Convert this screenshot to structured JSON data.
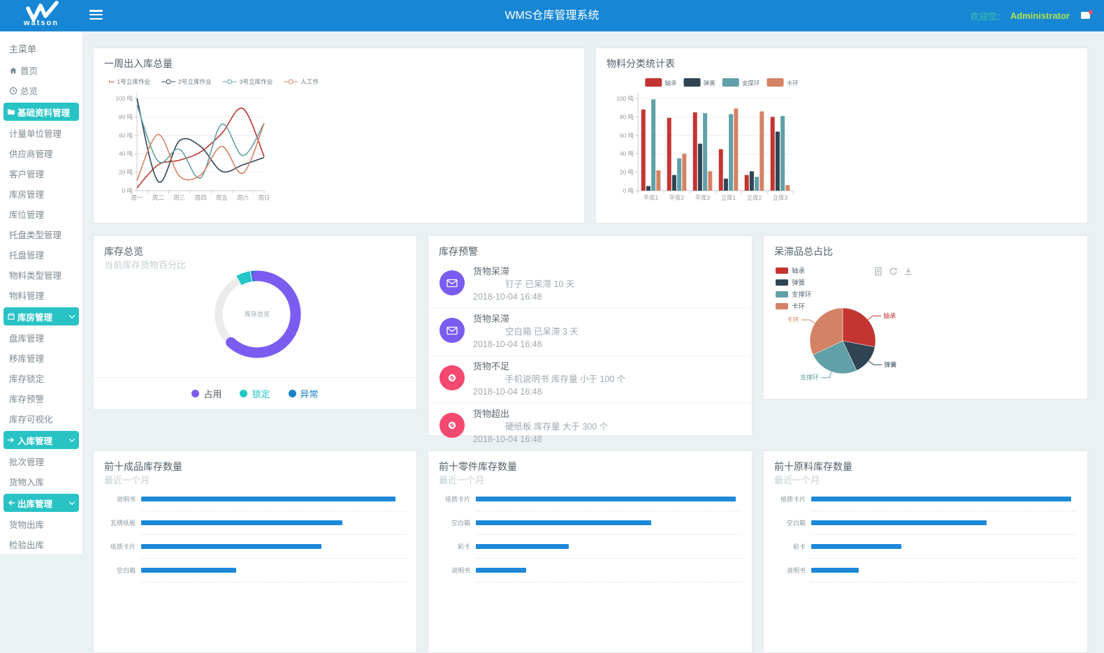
{
  "header": {
    "logo_text": "watson",
    "title": "WMS仓库管理系统",
    "welcome_label": "欢迎您：",
    "username": "Administrator"
  },
  "colors": {
    "header_blue": "#1787d5",
    "sidebar_teal": "#29c3c6",
    "welcome_green": "#3fc9a3",
    "username_green": "#b5e04b",
    "bar_blue": "#1e88d8",
    "alert_purple": "#7a5cf0",
    "alert_pink": "#f3486f"
  },
  "sidebar": {
    "section_label": "主菜单",
    "items": [
      {
        "label": "首页",
        "icon": "home-icon",
        "style": "link"
      },
      {
        "label": "总览",
        "icon": "overview-icon",
        "style": "link"
      },
      {
        "label": "基础资料管理",
        "icon": "folder-icon",
        "style": "group",
        "active": true
      },
      {
        "label": "计量单位管理",
        "style": "link"
      },
      {
        "label": "供应商管理",
        "style": "link"
      },
      {
        "label": "客户管理",
        "style": "link"
      },
      {
        "label": "库房管理",
        "style": "link"
      },
      {
        "label": "库位管理",
        "style": "link"
      },
      {
        "label": "托盘类型管理",
        "style": "link"
      },
      {
        "label": "托盘管理",
        "style": "link"
      },
      {
        "label": "物料类型管理",
        "style": "link"
      },
      {
        "label": "物料管理",
        "style": "link"
      },
      {
        "label": "库房管理",
        "icon": "box-icon",
        "style": "group",
        "chevron": true
      },
      {
        "label": "盘库管理",
        "style": "link"
      },
      {
        "label": "移库管理",
        "style": "link"
      },
      {
        "label": "库存锁定",
        "style": "link"
      },
      {
        "label": "库存预警",
        "style": "link"
      },
      {
        "label": "库存可视化",
        "style": "link"
      },
      {
        "label": "入库管理",
        "icon": "arrow-right-icon",
        "style": "group",
        "chevron": true
      },
      {
        "label": "批次管理",
        "style": "link"
      },
      {
        "label": "货物入库",
        "style": "link"
      },
      {
        "label": "出库管理",
        "icon": "arrow-left-icon",
        "style": "group",
        "chevron": true
      },
      {
        "label": "货物出库",
        "style": "link"
      },
      {
        "label": "检验出库",
        "style": "link"
      }
    ]
  },
  "cards": {
    "weekly": {
      "title": "一周出入库总量"
    },
    "material": {
      "title": "物料分类统计表"
    },
    "overview": {
      "title": "库存总览",
      "subtitle": "当前库存货物百分比"
    },
    "alerts": {
      "title": "库存预警",
      "items": [
        {
          "icon": "envelope-icon",
          "color": "#7a5cf0",
          "title": "货物呆滞",
          "message": "钉子 已呆滞 10 天",
          "time": "2018-10-04 16:48"
        },
        {
          "icon": "envelope-icon",
          "color": "#7a5cf0",
          "title": "货物呆滞",
          "message": "空白箱 已呆滞 3 天",
          "time": "2018-10-04 16:48"
        },
        {
          "icon": "alert-ring-icon",
          "color": "#f3486f",
          "title": "货物不足",
          "message": "手机说明书 库存量 小于 100 个",
          "time": "2018-10-04 16:48"
        },
        {
          "icon": "alert-ring-icon",
          "color": "#f3486f",
          "title": "货物超出",
          "message": "硬纸板 库存量 大于 300 个",
          "time": "2018-10-04 16:48"
        }
      ]
    },
    "stagnant": {
      "title": "呆滞品总占比",
      "toolbox": [
        "data-view-icon",
        "refresh-icon",
        "download-icon"
      ]
    },
    "top_finished": {
      "title": "前十成品库存数量",
      "subtitle": "最近一个月"
    },
    "top_parts": {
      "title": "前十零件库存数量",
      "subtitle": "最近一个月"
    },
    "top_raw": {
      "title": "前十原料库存数量",
      "subtitle": "最近一个月"
    }
  },
  "chart_data": [
    {
      "id": "weekly_line",
      "type": "line",
      "title": "一周出入库总量",
      "categories": [
        "周一",
        "周二",
        "周三",
        "周四",
        "周五",
        "周六",
        "周日"
      ],
      "unit": "吨",
      "ylim": [
        0,
        100
      ],
      "ytick_step": 20,
      "smooth": true,
      "legend_position": "top",
      "series": [
        {
          "name": "1号立库作业",
          "color": "#c23531",
          "values": [
            3,
            28,
            33,
            42,
            62,
            89,
            37
          ]
        },
        {
          "name": "2号立库作业",
          "color": "#2f4554",
          "values": [
            100,
            10,
            54,
            48,
            21,
            28,
            36
          ]
        },
        {
          "name": "3号立库作业",
          "color": "#61a0a8",
          "values": [
            93,
            32,
            45,
            14,
            72,
            38,
            73
          ]
        },
        {
          "name": "人工作业",
          "color": "#d48265",
          "values": [
            11,
            61,
            16,
            17,
            48,
            19,
            73
          ]
        }
      ]
    },
    {
      "id": "material_bar",
      "type": "bar",
      "title": "物料分类统计表",
      "categories": [
        "平库1",
        "平库2",
        "平库3",
        "立库1",
        "立库2",
        "立库3"
      ],
      "unit": "吨",
      "ylim": [
        0,
        100
      ],
      "ytick_step": 20,
      "legend_position": "top",
      "series": [
        {
          "name": "轴承",
          "color": "#c23531",
          "values": [
            88,
            79,
            85,
            45,
            17,
            80
          ]
        },
        {
          "name": "弹簧",
          "color": "#2f4554",
          "values": [
            5,
            17,
            51,
            13,
            21,
            64
          ]
        },
        {
          "name": "支撑环",
          "color": "#61a0a8",
          "values": [
            99,
            35,
            84,
            83,
            15,
            81
          ]
        },
        {
          "name": "卡环",
          "color": "#d48265",
          "values": [
            22,
            40,
            21,
            89,
            86,
            6
          ]
        }
      ]
    },
    {
      "id": "overview_donut",
      "type": "donut",
      "title": "库存总览",
      "center_label": "库存总览",
      "slices": [
        {
          "name": "占用",
          "value": 62,
          "color": "#7a5cf0"
        },
        {
          "name": "锁定",
          "value": 5.5,
          "color": "#23c6c9"
        },
        {
          "name": "异常",
          "value": 2.5,
          "color": "#1a82c8"
        }
      ],
      "remainder": {
        "value": 30,
        "color": "#ebebeb"
      },
      "legend_text_colors": [
        "#4a5a63",
        "#23c6c9",
        "#1a82c8"
      ]
    },
    {
      "id": "stagnant_pie",
      "type": "pie",
      "title": "呆滞品总占比",
      "slices": [
        {
          "name": "轴承",
          "value": 28,
          "color": "#c23531"
        },
        {
          "name": "弹簧",
          "value": 15,
          "color": "#2f4554"
        },
        {
          "name": "支撑环",
          "value": 25,
          "color": "#61a0a8"
        },
        {
          "name": "卡环",
          "value": 32,
          "color": "#d48265"
        }
      ]
    },
    {
      "id": "top_finished_bar",
      "type": "hbar",
      "title": "前十成品库存数量",
      "color": "#1e88d8",
      "max": 100,
      "categories": [
        "说明书",
        "瓦楞纸板",
        "纸质卡片",
        "空白箱"
      ],
      "values": [
        96,
        76,
        68,
        36
      ]
    },
    {
      "id": "top_parts_bar",
      "type": "hbar",
      "title": "前十零件库存数量",
      "color": "#1e88d8",
      "max": 100,
      "categories": [
        "纸质卡片",
        "空白箱",
        "彩卡",
        "说明书"
      ],
      "values": [
        98,
        66,
        35,
        19
      ]
    },
    {
      "id": "top_raw_bar",
      "type": "hbar",
      "title": "前十原料库存数量",
      "color": "#1e88d8",
      "max": 100,
      "categories": [
        "纸质卡片",
        "空白箱",
        "彩卡",
        "说明书"
      ],
      "values": [
        98,
        66,
        34,
        18
      ]
    }
  ]
}
